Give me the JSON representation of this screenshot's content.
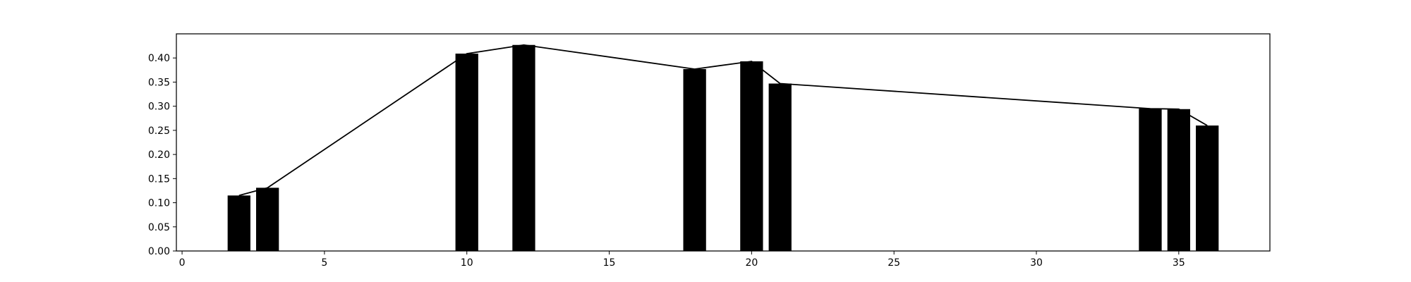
{
  "chart_data": {
    "type": "bar",
    "x": [
      2,
      3,
      10,
      12,
      18,
      20,
      21,
      34,
      35,
      36
    ],
    "values": [
      0.115,
      0.131,
      0.409,
      0.427,
      0.377,
      0.393,
      0.347,
      0.295,
      0.294,
      0.26
    ],
    "line_values": [
      0.115,
      0.131,
      0.409,
      0.427,
      0.377,
      0.393,
      0.347,
      0.295,
      0.294,
      0.26
    ],
    "xlim": [
      -0.2,
      38.2
    ],
    "ylim": [
      0,
      0.45
    ],
    "xticks": [
      0,
      5,
      10,
      15,
      20,
      25,
      30,
      35
    ],
    "xtick_labels": [
      "0",
      "5",
      "10",
      "15",
      "20",
      "25",
      "30",
      "35"
    ],
    "yticks": [
      0,
      0.05,
      0.1,
      0.15,
      0.2,
      0.25,
      0.3,
      0.35,
      0.4
    ],
    "ytick_labels": [
      "0.00",
      "0.05",
      "0.10",
      "0.15",
      "0.20",
      "0.25",
      "0.30",
      "0.35",
      "0.40"
    ],
    "bar_width": 0.8,
    "bar_color": "#000000",
    "line_color": "#000000",
    "grid": false,
    "title": "",
    "xlabel": "",
    "ylabel": ""
  }
}
